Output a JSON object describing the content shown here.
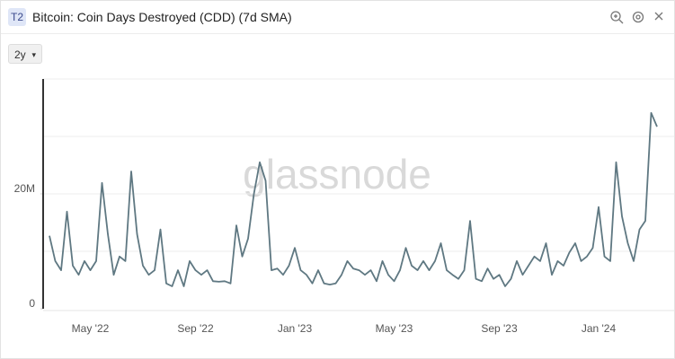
{
  "header": {
    "badge": "T2",
    "title": "Bitcoin: Coin Days Destroyed (CDD) (7d SMA)",
    "range_button": "2y"
  },
  "chart_data": {
    "type": "line",
    "watermark": "glassnode",
    "color": "#5f7882",
    "categories": [
      null,
      null,
      null,
      null,
      null,
      null,
      null,
      "May '22",
      null,
      null,
      null,
      null,
      null,
      null,
      null,
      null,
      null,
      null,
      null,
      null,
      null,
      null,
      null,
      null,
      null,
      "Sep '22",
      null,
      null,
      null,
      null,
      null,
      null,
      null,
      null,
      null,
      null,
      null,
      null,
      null,
      null,
      null,
      null,
      "Jan '23",
      null,
      null,
      null,
      null,
      null,
      null,
      null,
      null,
      null,
      null,
      null,
      null,
      null,
      null,
      null,
      null,
      "May '23",
      null,
      null,
      null,
      null,
      null,
      null,
      null,
      null,
      null,
      null,
      null,
      null,
      null,
      null,
      null,
      null,
      null,
      "Sep '23",
      null,
      null,
      null,
      null,
      null,
      null,
      null,
      null,
      null,
      null,
      null,
      null,
      null,
      null,
      null,
      null,
      "Jan '24",
      null,
      null,
      null,
      null,
      null,
      null,
      null,
      null,
      null,
      null
    ],
    "values": [
      12700000,
      8300000,
      6700000,
      16900000,
      7500000,
      5900000,
      8300000,
      6700000,
      8300000,
      21900000,
      13000000,
      5900000,
      9100000,
      8300000,
      23900000,
      13000000,
      7500000,
      5900000,
      6700000,
      13800000,
      4400000,
      3900000,
      6700000,
      3900000,
      8300000,
      6700000,
      5900000,
      6700000,
      4800000,
      4700000,
      4800000,
      4400000,
      14500000,
      9100000,
      12200000,
      20000000,
      25500000,
      22300000,
      6700000,
      7000000,
      5900000,
      7500000,
      10600000,
      6700000,
      5900000,
      4400000,
      6700000,
      4400000,
      4200000,
      4400000,
      5900000,
      8300000,
      7000000,
      6700000,
      5900000,
      6700000,
      4800000,
      8300000,
      5900000,
      4800000,
      6700000,
      10600000,
      7500000,
      6700000,
      8300000,
      6700000,
      8300000,
      11400000,
      6700000,
      5900000,
      5200000,
      6700000,
      15300000,
      5200000,
      4800000,
      7000000,
      5200000,
      5900000,
      3900000,
      5200000,
      8300000,
      5900000,
      7500000,
      9100000,
      8300000,
      11400000,
      5900000,
      8300000,
      7500000,
      9800000,
      11400000,
      8300000,
      9100000,
      10600000,
      17700000,
      9100000,
      8300000,
      25500000,
      16100000,
      11400000,
      8300000,
      13800000,
      15300000,
      34100000,
      31700000
    ],
    "ylim": [
      0,
      40000000
    ],
    "yticks": [
      0,
      {
        "value": 20000000,
        "label": "20M"
      }
    ],
    "ygrid": [
      10000000,
      20000000,
      30000000,
      40000000
    ]
  }
}
